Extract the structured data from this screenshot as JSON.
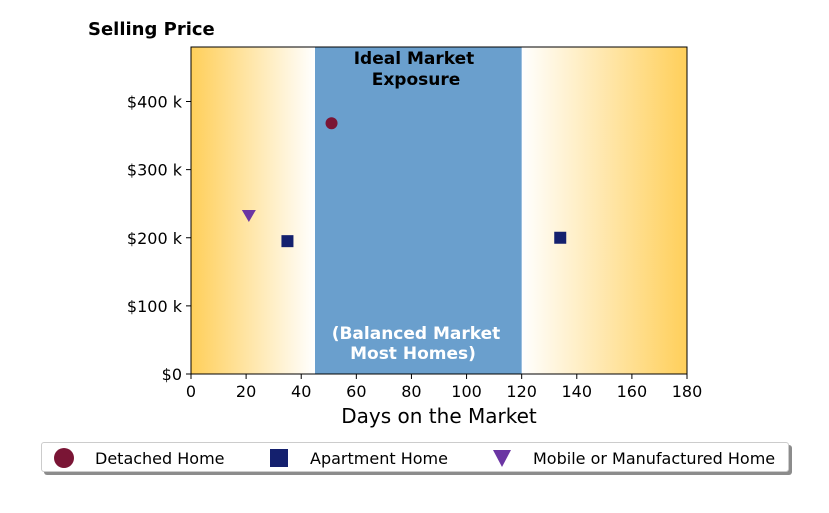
{
  "chart_data": {
    "type": "scatter",
    "title": "Selling Price",
    "xlabel": "Days on the Market",
    "ylabel": "",
    "xlim": [
      0,
      180
    ],
    "ylim": [
      0,
      480
    ],
    "x_ticks": [
      0,
      20,
      40,
      60,
      80,
      100,
      120,
      140,
      160,
      180
    ],
    "y_ticks": [
      0,
      100,
      200,
      300,
      400
    ],
    "y_tick_labels": [
      "$0",
      "$100 k",
      "$200 k",
      "$300 k",
      "$400 k"
    ],
    "grid": false,
    "legend_position": "bottom",
    "regions": [
      {
        "label": "Ideal Market Exposure",
        "x_start": 45,
        "x_end": 120,
        "color": "#6a9fcd"
      },
      {
        "label": "(Balanced Market Most Homes)",
        "x_start": 45,
        "x_end": 120,
        "color": "#6a9fcd"
      }
    ],
    "background_gradient": {
      "edge_color": "#ffcf5a",
      "center_color": "#ffffff"
    },
    "series": [
      {
        "name": "Detached Home",
        "marker": "circle",
        "color": "#7a1535",
        "points": [
          {
            "x": 51,
            "y": 368
          }
        ]
      },
      {
        "name": "Apartment Home",
        "marker": "square",
        "color": "#14206e",
        "points": [
          {
            "x": 35,
            "y": 195
          },
          {
            "x": 134,
            "y": 200
          }
        ]
      },
      {
        "name": "Mobile or Manufactured Home",
        "marker": "triangle-down",
        "color": "#6b35a3",
        "points": [
          {
            "x": 21,
            "y": 232
          }
        ]
      }
    ]
  },
  "region_labels": {
    "ideal_line1": "Ideal Market",
    "ideal_line2": "Exposure",
    "balanced_line1": "(Balanced Market",
    "balanced_line2": "Most Homes)"
  }
}
